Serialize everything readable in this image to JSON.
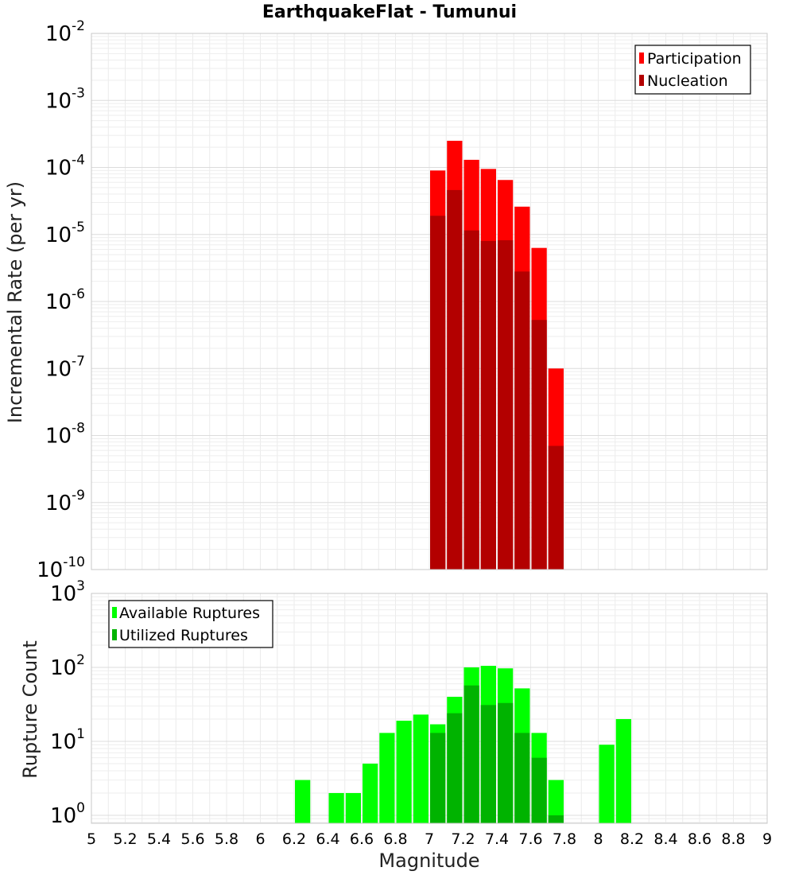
{
  "chart_data": [
    {
      "type": "bar",
      "title": "EarthquakeFlat - Tumunui",
      "xlabel": "Magnitude",
      "ylabel": "Incremental Rate (per yr)",
      "yscale": "log",
      "ylim": [
        1e-10,
        0.01
      ],
      "xlim": [
        5,
        9
      ],
      "grid": true,
      "legend_position": "top-right",
      "bin_width": 0.1,
      "yticks": [
        {
          "base": "10",
          "exp": "-10",
          "value": 1e-10
        },
        {
          "base": "10",
          "exp": "-9",
          "value": 1e-09
        },
        {
          "base": "10",
          "exp": "-8",
          "value": 1e-08
        },
        {
          "base": "10",
          "exp": "-7",
          "value": 1e-07
        },
        {
          "base": "10",
          "exp": "-6",
          "value": 1e-06
        },
        {
          "base": "10",
          "exp": "-5",
          "value": 1e-05
        },
        {
          "base": "10",
          "exp": "-4",
          "value": 0.0001
        },
        {
          "base": "10",
          "exp": "-3",
          "value": 0.001
        },
        {
          "base": "10",
          "exp": "-2",
          "value": 0.01
        }
      ],
      "series": [
        {
          "name": "Participation",
          "color": "#ff0000",
          "x": [
            7.05,
            7.15,
            7.25,
            7.35,
            7.45,
            7.55,
            7.65,
            7.75
          ],
          "values": [
            9e-05,
            0.00025,
            0.00013,
            9.5e-05,
            6.5e-05,
            2.6e-05,
            6.3e-06,
            1e-07
          ]
        },
        {
          "name": "Nucleation",
          "color": "#b30000",
          "x": [
            7.05,
            7.15,
            7.25,
            7.35,
            7.45,
            7.55,
            7.65,
            7.75
          ],
          "values": [
            1.9e-05,
            4.6e-05,
            1.15e-05,
            8e-06,
            8.2e-06,
            2.8e-06,
            5.3e-07,
            7e-09
          ]
        }
      ]
    },
    {
      "type": "bar",
      "xlabel": "Magnitude",
      "ylabel": "Rupture Count",
      "yscale": "log",
      "ylim": [
        0.78,
        1000
      ],
      "xlim": [
        5,
        9
      ],
      "grid": true,
      "legend_position": "top-left",
      "bin_width": 0.1,
      "xticks": [
        "5",
        "5.2",
        "5.4",
        "5.6",
        "5.8",
        "6",
        "6.2",
        "6.4",
        "6.6",
        "6.8",
        "7",
        "7.2",
        "7.4",
        "7.6",
        "7.8",
        "8",
        "8.2",
        "8.4",
        "8.6",
        "8.8",
        "9"
      ],
      "yticks": [
        {
          "base": "10",
          "exp": "0",
          "value": 1
        },
        {
          "base": "10",
          "exp": "1",
          "value": 10
        },
        {
          "base": "10",
          "exp": "2",
          "value": 100
        },
        {
          "base": "10",
          "exp": "3",
          "value": 1000
        }
      ],
      "series": [
        {
          "name": "Available Ruptures",
          "color": "#00ff00",
          "x": [
            6.25,
            6.45,
            6.55,
            6.65,
            6.75,
            6.85,
            6.95,
            7.05,
            7.15,
            7.25,
            7.35,
            7.45,
            7.55,
            7.65,
            7.75,
            8.05,
            8.15
          ],
          "values": [
            3,
            2,
            2,
            5,
            13,
            19,
            23,
            17,
            40,
            100,
            105,
            97,
            52,
            13,
            3,
            9,
            20
          ]
        },
        {
          "name": "Utilized Ruptures",
          "color": "#00b300",
          "x": [
            7.05,
            7.15,
            7.25,
            7.35,
            7.45,
            7.55,
            7.65,
            7.75
          ],
          "values": [
            13,
            24,
            57,
            31,
            33,
            13,
            6,
            1
          ]
        }
      ]
    }
  ]
}
